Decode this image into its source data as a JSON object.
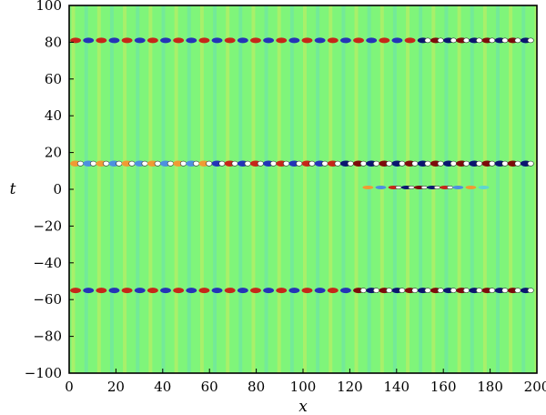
{
  "chart_data": {
    "type": "heatmap",
    "xlabel": "x",
    "ylabel": "t",
    "xlim": [
      0,
      200
    ],
    "ylim": [
      -100,
      100
    ],
    "x_ticks": [
      0,
      20,
      40,
      60,
      80,
      100,
      120,
      140,
      160,
      180,
      200
    ],
    "y_ticks": [
      -100,
      -80,
      -60,
      -40,
      -20,
      0,
      20,
      40,
      60,
      80,
      100
    ],
    "background_color": "#7ff57a",
    "positive_colors": [
      "#f6e84e",
      "#f09a33",
      "#c62619",
      "#7d0b0b"
    ],
    "negative_colors": [
      "#5fd6d1",
      "#4d8fe0",
      "#2433b8",
      "#0b1570"
    ],
    "stripe_period_x": 5.5,
    "bands": [
      {
        "t": 81,
        "width": 3.0,
        "x_start": 0,
        "x_end": 200,
        "style": "wave",
        "saturation_from_x": 150
      },
      {
        "t": 14,
        "width": 3.2,
        "x_start": 0,
        "x_end": 200,
        "style": "dense"
      },
      {
        "t": 1,
        "width": 2.0,
        "x_start": 125,
        "x_end": 180,
        "style": "peak",
        "peak_x": 150
      },
      {
        "t": -55,
        "width": 3.0,
        "x_start": 0,
        "x_end": 200,
        "style": "wave",
        "saturation_from_x": 120
      }
    ]
  }
}
